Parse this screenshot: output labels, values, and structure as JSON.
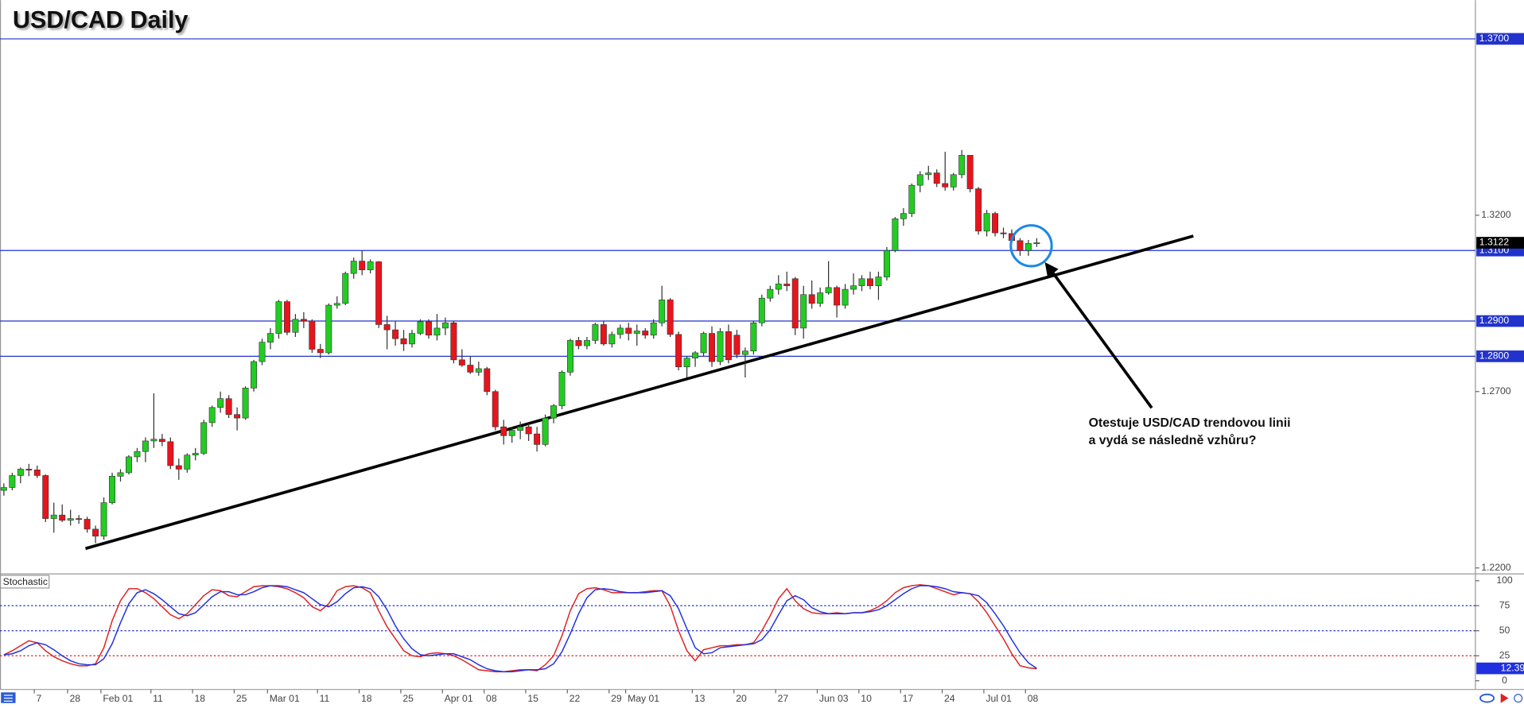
{
  "chart_data": {
    "type": "candlestick",
    "title": "USD/CAD Daily",
    "categories": [
      null,
      null,
      null,
      null,
      "7",
      null,
      null,
      null,
      "28",
      null,
      null,
      null,
      "Feb 01",
      null,
      null,
      null,
      null,
      null,
      "11",
      null,
      null,
      null,
      null,
      "18",
      null,
      null,
      null,
      null,
      "25",
      null,
      null,
      null,
      "Mar 01",
      null,
      null,
      null,
      null,
      null,
      "11",
      null,
      null,
      null,
      null,
      "18",
      null,
      null,
      null,
      null,
      "25",
      null,
      null,
      null,
      null,
      "Apr 01",
      null,
      null,
      null,
      null,
      "08",
      null,
      null,
      null,
      null,
      "15",
      null,
      null,
      null,
      null,
      "22",
      null,
      null,
      null,
      null,
      "29",
      null,
      "May 01",
      null,
      null,
      null,
      null,
      null,
      null,
      null,
      "13",
      null,
      null,
      null,
      null,
      "20",
      null,
      null,
      null,
      null,
      "27",
      null,
      null,
      null,
      null,
      "Jun 03",
      null,
      null,
      null,
      null,
      "10",
      null,
      null,
      null,
      null,
      "17",
      null,
      null,
      null,
      null,
      "24",
      null,
      null,
      null,
      null,
      "Jul 01",
      null,
      null,
      null,
      null,
      "08",
      null
    ],
    "open": [
      1.242,
      1.2428,
      1.2462,
      1.248,
      1.2478,
      1.2462,
      1.234,
      1.235,
      1.2335,
      1.234,
      1.2338,
      1.231,
      1.229,
      1.2385,
      1.246,
      1.247,
      1.2515,
      1.253,
      1.256,
      1.2565,
      1.2558,
      1.249,
      1.248,
      1.252,
      1.2525,
      1.2612,
      1.2655,
      1.268,
      1.2635,
      1.2625,
      1.271,
      1.2785,
      1.284,
      1.2865,
      1.2955,
      1.2868,
      1.2905,
      1.29,
      1.282,
      1.281,
      1.2945,
      1.295,
      1.3035,
      1.307,
      1.3045,
      1.3068,
      1.289,
      1.2875,
      1.285,
      1.2835,
      1.2865,
      1.2898,
      1.286,
      1.288,
      1.2895,
      1.279,
      1.2775,
      1.2755,
      1.2765,
      1.27,
      1.26,
      1.2575,
      1.259,
      1.26,
      1.258,
      1.255,
      1.2625,
      1.266,
      1.2755,
      1.2845,
      1.283,
      1.2845,
      1.289,
      1.2835,
      1.2862,
      1.288,
      1.2865,
      1.2872,
      1.286,
      1.2895,
      1.296,
      1.2862,
      1.277,
      1.2795,
      1.281,
      1.2865,
      1.2785,
      1.287,
      1.286,
      1.2805,
      1.2815,
      1.2895,
      1.2965,
      1.299,
      1.3005,
      1.302,
      1.288,
      1.2975,
      1.295,
      1.298,
      1.2995,
      1.2945,
      1.299,
      1.3,
      1.302,
      1.3,
      1.3025,
      1.31,
      1.319,
      1.3205,
      1.3285,
      1.3315,
      1.332,
      1.329,
      1.328,
      1.3315,
      1.337,
      1.3275,
      1.3155,
      1.3205,
      1.315,
      1.3148,
      1.3128,
      1.31,
      1.312
    ],
    "high": [
      1.244,
      1.247,
      1.2485,
      1.2495,
      1.249,
      1.2465,
      1.2385,
      1.238,
      1.2365,
      1.235,
      1.2345,
      1.232,
      1.24,
      1.247,
      1.248,
      1.252,
      1.254,
      1.257,
      1.2695,
      1.258,
      1.257,
      1.251,
      1.2525,
      1.254,
      1.262,
      1.266,
      1.27,
      1.269,
      1.2655,
      1.2715,
      1.279,
      1.285,
      1.288,
      1.296,
      1.296,
      1.292,
      1.2925,
      1.2905,
      1.2835,
      1.295,
      1.297,
      1.304,
      1.308,
      1.31,
      1.3075,
      1.307,
      1.2915,
      1.29,
      1.2875,
      1.2875,
      1.2905,
      1.2905,
      1.292,
      1.291,
      1.29,
      1.282,
      1.28,
      1.2785,
      1.277,
      1.2705,
      1.262,
      1.26,
      1.2615,
      1.261,
      1.26,
      1.2635,
      1.2665,
      1.276,
      1.285,
      1.2855,
      1.2855,
      1.2895,
      1.29,
      1.287,
      1.289,
      1.2895,
      1.289,
      1.288,
      1.2905,
      1.3,
      1.2965,
      1.287,
      1.28,
      1.2815,
      1.287,
      1.2885,
      1.288,
      1.289,
      1.2875,
      1.2825,
      1.29,
      1.2975,
      1.3,
      1.303,
      1.304,
      1.3025,
      1.3,
      1.3015,
      1.2995,
      1.307,
      1.3,
      1.3005,
      1.3035,
      1.303,
      1.304,
      1.304,
      1.311,
      1.3195,
      1.322,
      1.329,
      1.3325,
      1.334,
      1.333,
      1.338,
      1.332,
      1.3385,
      1.337,
      1.328,
      1.3215,
      1.321,
      1.3165,
      1.316,
      1.3135,
      1.313,
      1.3135
    ],
    "low": [
      1.2405,
      1.242,
      1.244,
      1.246,
      1.2455,
      1.233,
      1.23,
      1.233,
      1.232,
      1.2325,
      1.23,
      1.227,
      1.228,
      1.238,
      1.2445,
      1.2465,
      1.25,
      1.25,
      1.254,
      1.2545,
      1.248,
      1.245,
      1.247,
      1.2505,
      1.252,
      1.26,
      1.264,
      1.2625,
      1.259,
      1.262,
      1.27,
      1.2775,
      1.282,
      1.285,
      1.286,
      1.2855,
      1.288,
      1.281,
      1.2795,
      1.2805,
      1.2935,
      1.2945,
      1.302,
      1.303,
      1.3035,
      1.288,
      1.282,
      1.283,
      1.2815,
      1.2825,
      1.286,
      1.285,
      1.2845,
      1.286,
      1.278,
      1.277,
      1.275,
      1.2745,
      1.269,
      1.259,
      1.255,
      1.2555,
      1.2565,
      1.256,
      1.253,
      1.2545,
      1.261,
      1.265,
      1.2745,
      1.282,
      1.282,
      1.2835,
      1.283,
      1.2825,
      1.285,
      1.2845,
      1.283,
      1.285,
      1.285,
      1.2885,
      1.2855,
      1.276,
      1.274,
      1.277,
      1.28,
      1.277,
      1.2775,
      1.278,
      1.2795,
      1.274,
      1.2805,
      1.2885,
      1.2955,
      1.2975,
      1.2985,
      1.286,
      1.285,
      1.2935,
      1.294,
      1.2975,
      1.291,
      1.2935,
      1.2975,
      1.2985,
      1.299,
      1.296,
      1.3015,
      1.3095,
      1.317,
      1.3195,
      1.3265,
      1.33,
      1.328,
      1.327,
      1.327,
      1.3305,
      1.3265,
      1.3145,
      1.314,
      1.314,
      1.3135,
      1.312,
      1.3085,
      1.3085,
      1.311
    ],
    "close": [
      1.2428,
      1.2462,
      1.248,
      1.2478,
      1.2462,
      1.234,
      1.235,
      1.2335,
      1.234,
      1.2338,
      1.231,
      1.229,
      1.2385,
      1.246,
      1.247,
      1.2515,
      1.253,
      1.256,
      1.2565,
      1.2558,
      1.249,
      1.248,
      1.252,
      1.2525,
      1.2612,
      1.2655,
      1.268,
      1.2635,
      1.2625,
      1.271,
      1.2785,
      1.284,
      1.2865,
      1.2955,
      1.2868,
      1.2905,
      1.29,
      1.282,
      1.281,
      1.2945,
      1.295,
      1.3035,
      1.307,
      1.3045,
      1.3068,
      1.289,
      1.2875,
      1.285,
      1.2835,
      1.2865,
      1.2898,
      1.286,
      1.288,
      1.2895,
      1.279,
      1.2775,
      1.2755,
      1.2765,
      1.27,
      1.26,
      1.2575,
      1.259,
      1.26,
      1.258,
      1.255,
      1.2625,
      1.266,
      1.2755,
      1.2845,
      1.283,
      1.2845,
      1.289,
      1.2835,
      1.2862,
      1.288,
      1.2865,
      1.2872,
      1.286,
      1.2895,
      1.296,
      1.2862,
      1.277,
      1.2795,
      1.281,
      1.2865,
      1.2785,
      1.287,
      1.279,
      1.2805,
      1.2815,
      1.2895,
      1.2965,
      1.299,
      1.3005,
      1.3,
      1.288,
      1.2975,
      1.295,
      1.298,
      1.2995,
      1.2945,
      1.299,
      1.3,
      1.302,
      1.3,
      1.3025,
      1.31,
      1.319,
      1.3205,
      1.3285,
      1.3315,
      1.332,
      1.329,
      1.328,
      1.3315,
      1.337,
      1.3275,
      1.3155,
      1.3205,
      1.315,
      1.3148,
      1.3128,
      1.31,
      1.312,
      1.3122
    ],
    "colors": {
      "up": "#22cc22",
      "down": "#e8141c",
      "wick": "#333333"
    },
    "ylim": [
      1.2183,
      1.381
    ],
    "yticks": [
      {
        "value": 1.32,
        "label": "1.3200"
      },
      {
        "value": 1.27,
        "label": "1.2700"
      },
      {
        "value": 1.22,
        "label": "1.2200"
      }
    ],
    "hlines": [
      {
        "value": 1.37,
        "label": "1.3700"
      },
      {
        "value": 1.31,
        "label": "1.3100"
      },
      {
        "value": 1.29,
        "label": "1.2900"
      },
      {
        "value": 1.28,
        "label": "1.2800"
      }
    ],
    "hline_color": "#2233cc",
    "trendline": {
      "x": [
        9.8,
        142.8
      ],
      "y": [
        1.2255,
        1.3141
      ]
    },
    "annotation": [
      "Otestuje USD/CAD trendovou linii",
      "a vydá se následně vzhůru?"
    ],
    "stochastic": {
      "type": "line",
      "title": "Stochastic",
      "ylim": [
        -8.7,
        105.8
      ],
      "yticks": [
        100,
        75,
        50,
        25,
        0
      ],
      "levels": [
        {
          "value": 75,
          "color": "#2233cc"
        },
        {
          "value": 50,
          "color": "#2233cc"
        },
        {
          "value": 25,
          "color": "#dd2222"
        }
      ],
      "series": [
        {
          "color": "#e02020",
          "values": [
            26,
            30,
            35,
            40,
            38,
            30,
            24,
            20,
            17,
            15,
            15,
            17,
            33,
            60,
            80,
            92,
            92,
            88,
            82,
            74,
            66,
            62,
            67,
            76,
            85,
            91,
            90,
            85,
            84,
            89,
            94,
            95,
            95,
            94,
            92,
            88,
            83,
            74,
            70,
            77,
            90,
            94,
            95,
            93,
            88,
            70,
            54,
            42,
            30,
            25,
            24,
            27,
            28,
            27,
            25,
            21,
            16,
            11,
            10,
            9,
            9,
            10,
            11,
            11,
            10,
            16,
            25,
            45,
            70,
            87,
            92,
            93,
            91,
            88,
            88,
            88,
            88,
            89,
            90,
            90,
            75,
            50,
            30,
            20,
            31,
            33,
            35,
            35,
            36,
            36,
            38,
            50,
            65,
            82,
            92,
            80,
            72,
            68,
            67,
            67,
            68,
            67,
            68,
            68,
            70,
            74,
            80,
            88,
            93,
            95,
            96,
            95,
            92,
            89,
            86,
            88,
            87,
            79,
            68,
            55,
            42,
            27,
            15,
            13,
            12
          ]
        },
        {
          "color": "#2030e0",
          "values": [
            26,
            27,
            30,
            35,
            38,
            36,
            31,
            25,
            20,
            17,
            16,
            16,
            22,
            37,
            58,
            77,
            88,
            91,
            87,
            81,
            74,
            67,
            65,
            68,
            76,
            84,
            89,
            89,
            86,
            86,
            89,
            93,
            95,
            95,
            94,
            91,
            88,
            82,
            76,
            74,
            79,
            87,
            93,
            94,
            92,
            84,
            71,
            55,
            42,
            32,
            26,
            25,
            26,
            27,
            27,
            24,
            21,
            16,
            12,
            10,
            9,
            9,
            10,
            11,
            11,
            12,
            17,
            29,
            47,
            67,
            83,
            91,
            92,
            91,
            89,
            88,
            88,
            88,
            89,
            90,
            85,
            72,
            52,
            33,
            27,
            28,
            33,
            34,
            35,
            36,
            37,
            41,
            51,
            66,
            80,
            85,
            81,
            73,
            69,
            67,
            67,
            67,
            68,
            68,
            69,
            71,
            75,
            81,
            87,
            92,
            95,
            95,
            94,
            92,
            89,
            88,
            87,
            85,
            78,
            67,
            55,
            41,
            28,
            18,
            12.39
          ]
        }
      ]
    }
  }
}
